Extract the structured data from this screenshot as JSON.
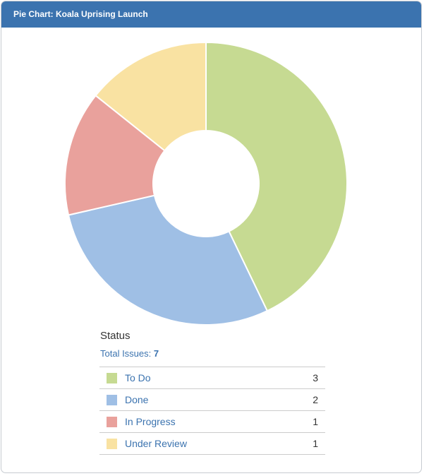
{
  "gadget": {
    "title": "Pie Chart: Koala Uprising Launch"
  },
  "chart_data": {
    "type": "pie",
    "donut": true,
    "title": "Status",
    "total_label": "Total Issues:",
    "total": 7,
    "categories": [
      "To Do",
      "Done",
      "In Progress",
      "Under Review"
    ],
    "values": [
      3,
      2,
      1,
      1
    ],
    "colors": [
      "#c6da92",
      "#9fbfe5",
      "#e9a19c",
      "#f9e2a2"
    ]
  }
}
